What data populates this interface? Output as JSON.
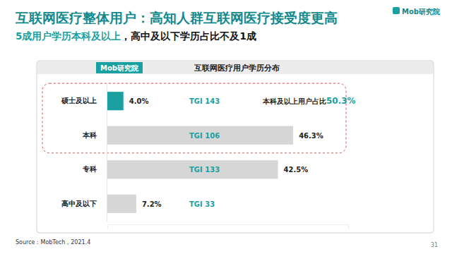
{
  "chart_data": {
    "type": "bar",
    "orientation": "horizontal",
    "title": "互联网医疗整体用户：高知人群互联网医疗接受度更高",
    "subtitle": "5成用户学历本科及以上，高中及以下学历占比不及1成",
    "logo": "Mob研究院",
    "chart_logo": "Mob研究院",
    "chart_title": "互联网医疗用户学历分布",
    "categories": [
      "硕士及以上",
      "本科",
      "专科",
      "高中及以下"
    ],
    "values": [
      4.0,
      46.3,
      42.5,
      7.2
    ],
    "value_labels": [
      "4.0%",
      "46.3%",
      "42.5%",
      "7.2%"
    ],
    "data_labels": true,
    "colors": [
      "#1aa0a0",
      "#d6d6d6",
      "#d6d6d6",
      "#d6d6d6"
    ],
    "tgi_labels": [
      "TGI 143",
      "TGI 106",
      "TGI 133",
      "TGI 33"
    ],
    "annotation": "本科及以上用户占比50.3%",
    "xlim": [
      0,
      60
    ],
    "xticks": [],
    "tick_labels": "y",
    "grid": false,
    "source": "Source：MobTech，2021.4",
    "page_number": "31"
  }
}
